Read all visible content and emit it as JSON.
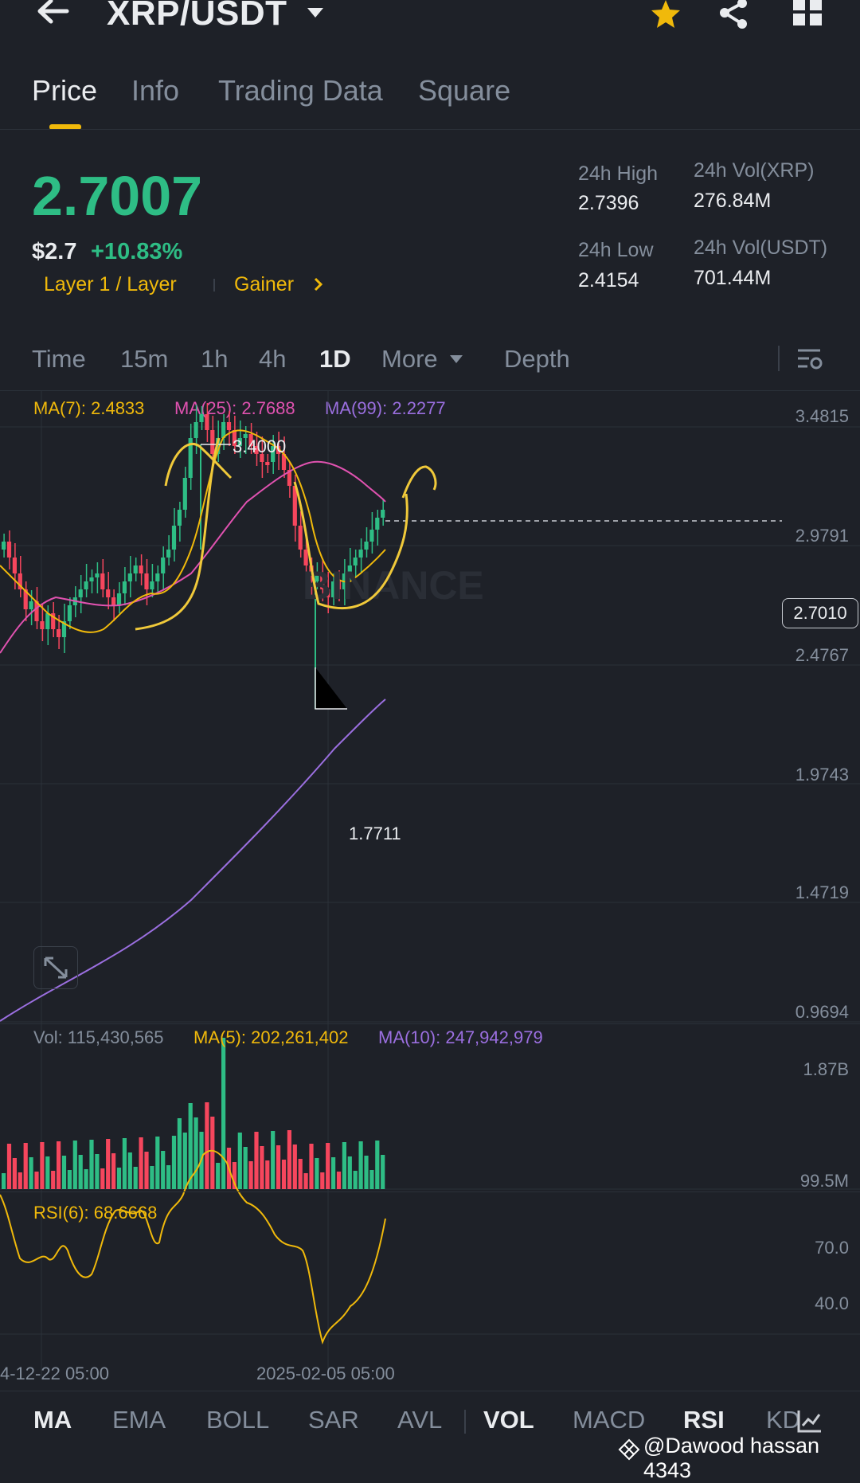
{
  "header": {
    "pair": "XRP/USDT"
  },
  "tabs": [
    {
      "label": "Price"
    },
    {
      "label": "Info"
    },
    {
      "label": "Trading Data"
    },
    {
      "label": "Square"
    }
  ],
  "ticker": {
    "price": "2.7007",
    "usd_price": "$2.7",
    "change": "+10.83%",
    "tag1": "Layer 1 / Layer",
    "tag2": "Gainer",
    "high_label": "24h High",
    "high": "2.7396",
    "low_label": "24h Low",
    "low": "2.4154",
    "vol_xrp_label": "24h Vol(XRP)",
    "vol_xrp": "276.84M",
    "vol_usdt_label": "24h Vol(USDT)",
    "vol_usdt": "701.44M"
  },
  "timeframes": [
    {
      "label": "Time"
    },
    {
      "label": "15m"
    },
    {
      "label": "1h"
    },
    {
      "label": "4h"
    },
    {
      "label": "1D"
    },
    {
      "label": "More"
    },
    {
      "label": "Depth"
    }
  ],
  "chart": {
    "ma7": "MA(7): 2.4833",
    "ma25": "MA(25): 2.7688",
    "ma99": "MA(99): 2.2277",
    "y_axis": [
      "3.4815",
      "2.9791",
      "2.4767",
      "1.9743",
      "1.4719",
      "0.9694"
    ],
    "current_price_tag": "2.7010",
    "high_marker": "3.4000",
    "low_marker": "1.7711",
    "watermark": "BINANCE"
  },
  "volume": {
    "vol": "Vol: 115,430,565",
    "ma5": "MA(5): 202,261,402",
    "ma10": "MA(10): 247,942,979",
    "axis": [
      "1.87B",
      "99.5M"
    ]
  },
  "rsi": {
    "label": "RSI(6): 68.6668",
    "axis": [
      "70.0",
      "40.0"
    ]
  },
  "dates": [
    "4-12-22 05:00",
    "2025-02-05 05:00"
  ],
  "indicators": [
    {
      "label": "MA"
    },
    {
      "label": "EMA"
    },
    {
      "label": "BOLL"
    },
    {
      "label": "SAR"
    },
    {
      "label": "AVL"
    },
    {
      "label": "VOL"
    },
    {
      "label": "MACD"
    },
    {
      "label": "RSI"
    },
    {
      "label": "KD"
    }
  ],
  "watermark_user": "@Dawood hassan 4343",
  "colors": {
    "up": "#2ebd85",
    "down": "#f6465d",
    "ma7": "#f0b90b",
    "ma25": "#e052b0",
    "ma99": "#9b6fe0",
    "accent": "#f0b90b"
  }
}
